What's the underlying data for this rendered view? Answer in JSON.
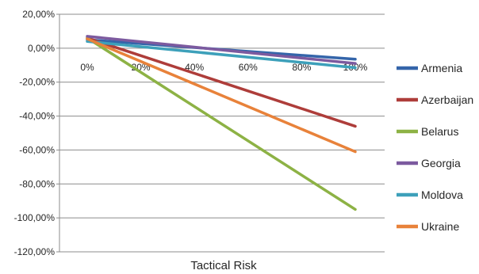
{
  "chart_data": {
    "type": "line",
    "title": "",
    "xlabel": "Tactical Risk",
    "ylabel": "",
    "x_tick_labels": [
      "0%",
      "20%",
      "40%",
      "60%",
      "80%",
      "100%"
    ],
    "x": [
      0,
      100
    ],
    "y_tick_labels": [
      "20,00%",
      "0,00%",
      "-20,00%",
      "-40,00%",
      "-60,00%",
      "-80,00%",
      "-100,00%",
      "-120,00%"
    ],
    "ylim": [
      -120,
      20
    ],
    "grid": "horizontal",
    "legend_position": "right",
    "series": [
      {
        "name": "Armenia",
        "color": "#3465AA",
        "values": [
          5,
          -6.5
        ]
      },
      {
        "name": "Azerbaijan",
        "color": "#AE3D3A",
        "values": [
          6,
          -46
        ]
      },
      {
        "name": "Belarus",
        "color": "#8DB245",
        "values": [
          6,
          -95
        ]
      },
      {
        "name": "Georgia",
        "color": "#7C5A9F",
        "values": [
          7,
          -9
        ]
      },
      {
        "name": "Moldova",
        "color": "#3DA0BA",
        "values": [
          4,
          -11.5
        ]
      },
      {
        "name": "Ukraine",
        "color": "#E8823A",
        "values": [
          5.5,
          -61
        ]
      }
    ]
  }
}
